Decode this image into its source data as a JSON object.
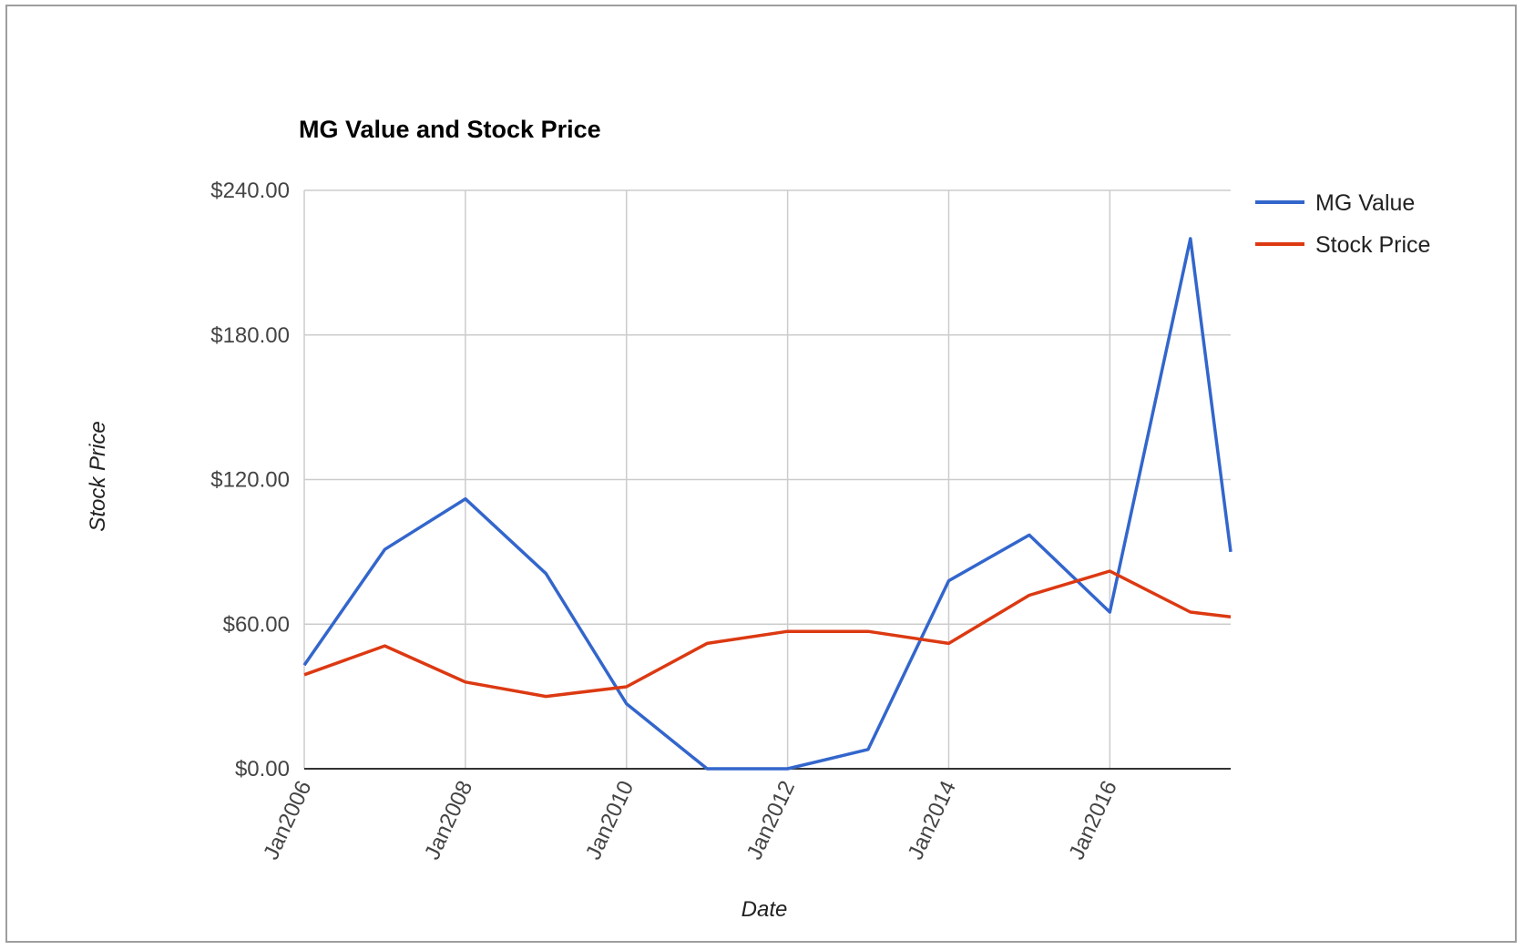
{
  "chart_data": {
    "type": "line",
    "title": "MG Value and Stock Price",
    "xlabel": "Date",
    "ylabel": "Stock Price",
    "ylim": [
      0,
      240
    ],
    "xlim": [
      "2006-01",
      "2017-07"
    ],
    "yticks": [
      {
        "value": 0,
        "label": "$0.00"
      },
      {
        "value": 60,
        "label": "$60.00"
      },
      {
        "value": 120,
        "label": "$120.00"
      },
      {
        "value": 180,
        "label": "$180.00"
      },
      {
        "value": 240,
        "label": "$240.00"
      }
    ],
    "xticks": [
      {
        "value": "2006-01",
        "label": "Jan2006"
      },
      {
        "value": "2008-01",
        "label": "Jan2008"
      },
      {
        "value": "2010-01",
        "label": "Jan2010"
      },
      {
        "value": "2012-01",
        "label": "Jan2012"
      },
      {
        "value": "2014-01",
        "label": "Jan2014"
      },
      {
        "value": "2016-01",
        "label": "Jan2016"
      }
    ],
    "grid": true,
    "legend_position": "right",
    "series": [
      {
        "name": "MG Value",
        "color": "#3366cc",
        "points": [
          {
            "x": "2006-01",
            "y": 43
          },
          {
            "x": "2007-01",
            "y": 91
          },
          {
            "x": "2008-01",
            "y": 112
          },
          {
            "x": "2009-01",
            "y": 81
          },
          {
            "x": "2010-01",
            "y": 27
          },
          {
            "x": "2011-01",
            "y": 0
          },
          {
            "x": "2012-01",
            "y": 0
          },
          {
            "x": "2013-01",
            "y": 8
          },
          {
            "x": "2014-01",
            "y": 78
          },
          {
            "x": "2015-01",
            "y": 97
          },
          {
            "x": "2016-01",
            "y": 65
          },
          {
            "x": "2017-01",
            "y": 220
          },
          {
            "x": "2017-07",
            "y": 90
          }
        ]
      },
      {
        "name": "Stock Price",
        "color": "#dc3912",
        "points": [
          {
            "x": "2006-01",
            "y": 39
          },
          {
            "x": "2007-01",
            "y": 51
          },
          {
            "x": "2008-01",
            "y": 36
          },
          {
            "x": "2009-01",
            "y": 30
          },
          {
            "x": "2010-01",
            "y": 34
          },
          {
            "x": "2011-01",
            "y": 52
          },
          {
            "x": "2012-01",
            "y": 57
          },
          {
            "x": "2013-01",
            "y": 57
          },
          {
            "x": "2014-01",
            "y": 52
          },
          {
            "x": "2015-01",
            "y": 72
          },
          {
            "x": "2016-01",
            "y": 82
          },
          {
            "x": "2017-01",
            "y": 65
          },
          {
            "x": "2017-07",
            "y": 63
          }
        ]
      }
    ]
  }
}
